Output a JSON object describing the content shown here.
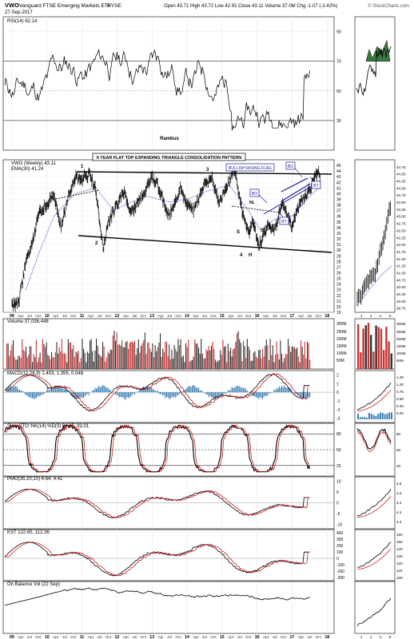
{
  "header": {
    "symbol": "VWO",
    "name": "Vanguard FTSE Emerging Markets ETF",
    "exchange": "NYSE",
    "date": "27-Sep-2017",
    "quote": "Open 43.71  High 43.72  Low 42.91  Close 43.11  Volume 37.0M  Chg -1.07 (-2.42%)",
    "watermark": "© StockCharts.com"
  },
  "colors": {
    "price": "#000000",
    "ema": "#3333cc",
    "signal": "#cc0000",
    "volume_up": "#333333",
    "volume_down": "#cc3333",
    "histogram": "#3b7fb4",
    "rsi_fill": "#3c7a3c",
    "grid": "#dddddd"
  },
  "chart_data": [
    {
      "type": "line",
      "panel": "rsi",
      "legend": "RSI(14) 62.14",
      "annotation": "Rambus",
      "ylim": [
        10,
        100
      ],
      "yticks": [
        90,
        70,
        50,
        30
      ],
      "series": [
        {
          "name": "RSI(14)",
          "last": 62.14
        }
      ]
    },
    {
      "type": "line",
      "panel": "price",
      "legend_price": "VWO (Weekly) 43.11",
      "legend_ema": "EMA(30) 41.24",
      "title": "6 YEAR FLAT TOP EXPANDING TRIANGLE  CONSOLIDATION PATTERN",
      "ylim": [
        19,
        46
      ],
      "yticks": [
        45,
        44,
        43,
        42,
        41,
        40,
        39,
        38,
        37,
        36,
        35,
        34,
        33,
        32,
        31,
        30,
        29,
        28,
        27,
        26,
        25,
        24,
        23,
        22,
        21,
        20,
        19
      ],
      "x_years": [
        "09",
        "10",
        "11",
        "12",
        "13",
        "14",
        "15",
        "16",
        "17",
        "18"
      ],
      "x_minor": [
        "Apr",
        "Jul",
        "Oct"
      ],
      "annotations": [
        "1",
        "2",
        "3",
        "4",
        "S",
        "H",
        "S",
        "BULLISH RISING FLAG",
        "BO",
        "BO",
        "BT",
        "BT",
        "NL"
      ],
      "series": [
        {
          "name": "VWO (Weekly)",
          "points": [
            [
              2009.0,
              20
            ],
            [
              2009.2,
              21
            ],
            [
              2009.4,
              28
            ],
            [
              2009.6,
              32
            ],
            [
              2009.8,
              37
            ],
            [
              2010.0,
              38
            ],
            [
              2010.2,
              40
            ],
            [
              2010.4,
              34
            ],
            [
              2010.6,
              39
            ],
            [
              2010.8,
              43
            ],
            [
              2011.0,
              42.5
            ],
            [
              2011.2,
              43.5
            ],
            [
              2011.4,
              40.5
            ],
            [
              2011.6,
              30
            ],
            [
              2011.75,
              35
            ],
            [
              2012.0,
              38
            ],
            [
              2012.2,
              40.5
            ],
            [
              2012.4,
              36.5
            ],
            [
              2012.6,
              38.5
            ],
            [
              2012.8,
              40.5
            ],
            [
              2013.0,
              43
            ],
            [
              2013.2,
              41
            ],
            [
              2013.45,
              36
            ],
            [
              2013.6,
              37.5
            ],
            [
              2013.8,
              41
            ],
            [
              2014.0,
              38
            ],
            [
              2014.2,
              37
            ],
            [
              2014.5,
              41.5
            ],
            [
              2014.7,
              43
            ],
            [
              2014.9,
              38.5
            ],
            [
              2015.1,
              40.5
            ],
            [
              2015.35,
              44.5
            ],
            [
              2015.6,
              36
            ],
            [
              2015.75,
              33
            ],
            [
              2015.9,
              35
            ],
            [
              2016.05,
              30.5
            ],
            [
              2016.3,
              34.5
            ],
            [
              2016.5,
              33.5
            ],
            [
              2016.7,
              38
            ],
            [
              2016.85,
              36.5
            ],
            [
              2017.0,
              34
            ],
            [
              2017.15,
              37
            ],
            [
              2017.3,
              39
            ],
            [
              2017.45,
              40
            ],
            [
              2017.6,
              42
            ],
            [
              2017.75,
              44.5
            ],
            [
              2017.8,
              43.1
            ]
          ]
        },
        {
          "name": "EMA(30)",
          "points": [
            [
              2009.4,
              23
            ],
            [
              2009.8,
              30
            ],
            [
              2010.2,
              36
            ],
            [
              2010.8,
              40
            ],
            [
              2011.4,
              41
            ],
            [
              2011.9,
              37
            ],
            [
              2012.4,
              38.5
            ],
            [
              2012.9,
              39.5
            ],
            [
              2013.5,
              38.5
            ],
            [
              2014.0,
              39
            ],
            [
              2014.6,
              40.5
            ],
            [
              2015.2,
              41.5
            ],
            [
              2015.7,
              37.5
            ],
            [
              2016.1,
              33.5
            ],
            [
              2016.5,
              35.5
            ],
            [
              2017.0,
              36
            ],
            [
              2017.5,
              39.5
            ],
            [
              2017.8,
              41.24
            ]
          ]
        }
      ]
    },
    {
      "type": "bar",
      "panel": "volume",
      "legend": "Volume 37,036,448",
      "yticks": [
        "300M",
        "250M",
        "200M",
        "150M",
        "100M",
        "50M"
      ]
    },
    {
      "type": "line",
      "panel": "macd",
      "legend": "MACD(12,26,9) 1.403, 1.355, 0.048",
      "ylim": [
        -3.5,
        2.5
      ],
      "yticks": [
        2,
        1,
        0,
        -1,
        -2,
        -3
      ]
    },
    {
      "type": "line",
      "panel": "stoch",
      "legend": "Slow STO %K(14) %D(3) 84.85, 92.01",
      "ylim": [
        0,
        100
      ],
      "yticks": [
        80,
        50,
        20
      ]
    },
    {
      "type": "line",
      "panel": "pmo",
      "legend": "PMO(35,20,10) 4.64, 4.41",
      "ylim": [
        -12,
        12
      ],
      "yticks": [
        10,
        5,
        0,
        -5,
        -10
      ]
    },
    {
      "type": "line",
      "panel": "kst",
      "legend": "KST 122.65, 112.36",
      "ylim": [
        -350,
        450
      ],
      "yticks": [
        400,
        300,
        200,
        100,
        0,
        -100,
        -200,
        -300
      ]
    },
    {
      "type": "line",
      "panel": "obv",
      "legend": "On Balance Vol (22 Sep)"
    }
  ],
  "inset": {
    "months": [
      "J",
      "J",
      "A",
      "S"
    ],
    "price_ticks": [
      "44.75",
      "44.50",
      "44.25",
      "44.00",
      "43.75",
      "43.50",
      "43.25",
      "43.00",
      "42.75",
      "42.50",
      "42.25",
      "42.00",
      "41.75",
      "41.50",
      "41.25",
      "41.00",
      "40.75",
      "40.50",
      "40.25",
      "40.00",
      "39.75"
    ],
    "macd_ticks": [
      "1.25",
      "1.00",
      "0.75",
      "0.50",
      "0.25",
      "0.00"
    ],
    "pmo_ticks": [
      "4.8",
      "4.6",
      "4.4",
      "4.2",
      "4.0"
    ],
    "kst_ticks": [
      "160",
      "150",
      "140",
      "130",
      "120",
      "110",
      "100"
    ]
  }
}
